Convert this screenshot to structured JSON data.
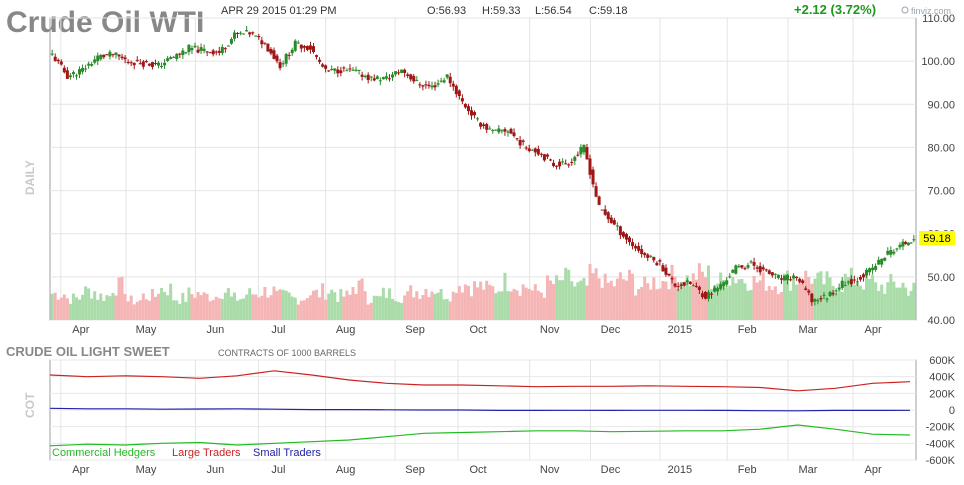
{
  "title": "Crude Oil WTI",
  "header": {
    "datetime": "APR 29 2015 01:29 PM",
    "open": "O:56.93",
    "high": "H:59.33",
    "low": "L:56.54",
    "close": "C:59.18",
    "change": "+2.12 (3.72%)",
    "change_color": "#1a9a1a"
  },
  "watermark": "finviz.com",
  "price_panel": {
    "side_label": "DAILY",
    "last_price_tag": "59.18",
    "last_price_tag_color": "#ffff00",
    "up_color": "#2a8a2a",
    "down_color": "#a01515"
  },
  "cot_panel": {
    "title": "CRUDE OIL LIGHT SWEET",
    "subtitle": "CONTRACTS OF 1000 BARRELS",
    "side_label": "COT"
  },
  "legend": [
    {
      "label": "Commercial Hedgers",
      "color": "#22bb22"
    },
    {
      "label": "Large Traders",
      "color": "#cc2222"
    },
    {
      "label": "Small Traders",
      "color": "#2222aa"
    }
  ],
  "chart_data": [
    {
      "type": "candlestick",
      "name": "price",
      "x_labels": [
        "Apr",
        "May",
        "Jun",
        "Jul",
        "Aug",
        "Sep",
        "Oct",
        "Nov",
        "Dec",
        "2015",
        "Feb",
        "Mar",
        "Apr"
      ],
      "y_ticks": [
        "110.00",
        "100.00",
        "90.00",
        "80.00",
        "70.00",
        "60.00",
        "50.00",
        "40.00"
      ],
      "ylim": [
        40,
        110
      ],
      "grid": true,
      "close_path": [
        {
          "date": "2014-03-28",
          "close": 101.5
        },
        {
          "date": "2014-04-04",
          "close": 96.5
        },
        {
          "date": "2014-04-11",
          "close": 98
        },
        {
          "date": "2014-04-18",
          "close": 101
        },
        {
          "date": "2014-04-25",
          "close": 101.5
        },
        {
          "date": "2014-05-02",
          "close": 100
        },
        {
          "date": "2014-05-09",
          "close": 99.5
        },
        {
          "date": "2014-05-16",
          "close": 99
        },
        {
          "date": "2014-05-23",
          "close": 101
        },
        {
          "date": "2014-05-30",
          "close": 103
        },
        {
          "date": "2014-06-06",
          "close": 102.5
        },
        {
          "date": "2014-06-13",
          "close": 102
        },
        {
          "date": "2014-06-20",
          "close": 106
        },
        {
          "date": "2014-06-27",
          "close": 106.5
        },
        {
          "date": "2014-07-04",
          "close": 104
        },
        {
          "date": "2014-07-11",
          "close": 99
        },
        {
          "date": "2014-07-18",
          "close": 104
        },
        {
          "date": "2014-07-25",
          "close": 103
        },
        {
          "date": "2014-08-01",
          "close": 97.5
        },
        {
          "date": "2014-08-08",
          "close": 98
        },
        {
          "date": "2014-08-15",
          "close": 97.5
        },
        {
          "date": "2014-08-22",
          "close": 96
        },
        {
          "date": "2014-08-29",
          "close": 96
        },
        {
          "date": "2014-09-05",
          "close": 98
        },
        {
          "date": "2014-09-12",
          "close": 95
        },
        {
          "date": "2014-09-19",
          "close": 94
        },
        {
          "date": "2014-09-26",
          "close": 96.5
        },
        {
          "date": "2014-10-03",
          "close": 90.5
        },
        {
          "date": "2014-10-10",
          "close": 86
        },
        {
          "date": "2014-10-17",
          "close": 83.5
        },
        {
          "date": "2014-10-24",
          "close": 84
        },
        {
          "date": "2014-10-31",
          "close": 80.5
        },
        {
          "date": "2014-11-07",
          "close": 79
        },
        {
          "date": "2014-11-14",
          "close": 76
        },
        {
          "date": "2014-11-21",
          "close": 76.5
        },
        {
          "date": "2014-11-28",
          "close": 80
        },
        {
          "date": "2014-12-05",
          "close": 66
        },
        {
          "date": "2014-12-12",
          "close": 62
        },
        {
          "date": "2014-12-19",
          "close": 58
        },
        {
          "date": "2014-12-26",
          "close": 55
        },
        {
          "date": "2015-01-02",
          "close": 53
        },
        {
          "date": "2015-01-09",
          "close": 48
        },
        {
          "date": "2015-01-16",
          "close": 48.5
        },
        {
          "date": "2015-01-23",
          "close": 45.5
        },
        {
          "date": "2015-01-30",
          "close": 48
        },
        {
          "date": "2015-02-06",
          "close": 52
        },
        {
          "date": "2015-02-13",
          "close": 53
        },
        {
          "date": "2015-02-20",
          "close": 51
        },
        {
          "date": "2015-02-27",
          "close": 49.5
        },
        {
          "date": "2015-03-06",
          "close": 50
        },
        {
          "date": "2015-03-13",
          "close": 44.5
        },
        {
          "date": "2015-03-20",
          "close": 45.5
        },
        {
          "date": "2015-03-27",
          "close": 48.5
        },
        {
          "date": "2015-04-03",
          "close": 49.5
        },
        {
          "date": "2015-04-10",
          "close": 52
        },
        {
          "date": "2015-04-17",
          "close": 55.5
        },
        {
          "date": "2015-04-24",
          "close": 57.5
        },
        {
          "date": "2015-04-29",
          "close": 59.18
        }
      ],
      "volume_relative": [
        0.55,
        0.45,
        0.6,
        0.5,
        0.7,
        0.4,
        0.5,
        0.65,
        0.45,
        0.55,
        0.5,
        0.6,
        0.45,
        0.55,
        0.6,
        0.5,
        0.45,
        0.55,
        0.6,
        0.5,
        0.7,
        0.45,
        0.55,
        0.5,
        0.6,
        0.65,
        0.55,
        0.75,
        0.7,
        0.65,
        0.8,
        0.7,
        0.6,
        0.75,
        0.85,
        0.7,
        0.9,
        0.75,
        0.85,
        0.7,
        0.8,
        0.9,
        0.85,
        0.95,
        0.8,
        0.9,
        0.85,
        0.8,
        0.75,
        0.85,
        0.9,
        0.8,
        0.75,
        0.85,
        0.8,
        0.7,
        0.75,
        0.65
      ]
    },
    {
      "type": "line",
      "name": "cot",
      "y_ticks": [
        "600K",
        "400K",
        "200K",
        "0",
        "-200K",
        "-400K",
        "-600K"
      ],
      "ylim": [
        -600000,
        600000
      ],
      "grid": true,
      "series": [
        {
          "name": "Commercial Hedgers",
          "color": "#22bb22",
          "values": [
            -430000,
            -410000,
            -420000,
            -400000,
            -390000,
            -420000,
            -400000,
            -380000,
            -360000,
            -320000,
            -280000,
            -270000,
            -260000,
            -250000,
            -250000,
            -260000,
            -255000,
            -250000,
            -250000,
            -230000,
            -180000,
            -230000,
            -290000,
            -300000
          ]
        },
        {
          "name": "Large Traders",
          "color": "#cc2222",
          "values": [
            420000,
            400000,
            410000,
            400000,
            380000,
            410000,
            470000,
            420000,
            360000,
            320000,
            300000,
            300000,
            290000,
            280000,
            285000,
            285000,
            290000,
            285000,
            280000,
            270000,
            230000,
            260000,
            320000,
            340000
          ]
        },
        {
          "name": "Small Traders",
          "color": "#2222aa",
          "values": [
            20000,
            15000,
            15000,
            10000,
            12000,
            14000,
            10000,
            5000,
            5000,
            3000,
            0,
            0,
            -5000,
            -5000,
            -3000,
            -5000,
            -4000,
            -3000,
            -5000,
            -8000,
            -10000,
            -5000,
            -5000,
            -3000
          ]
        }
      ]
    }
  ]
}
